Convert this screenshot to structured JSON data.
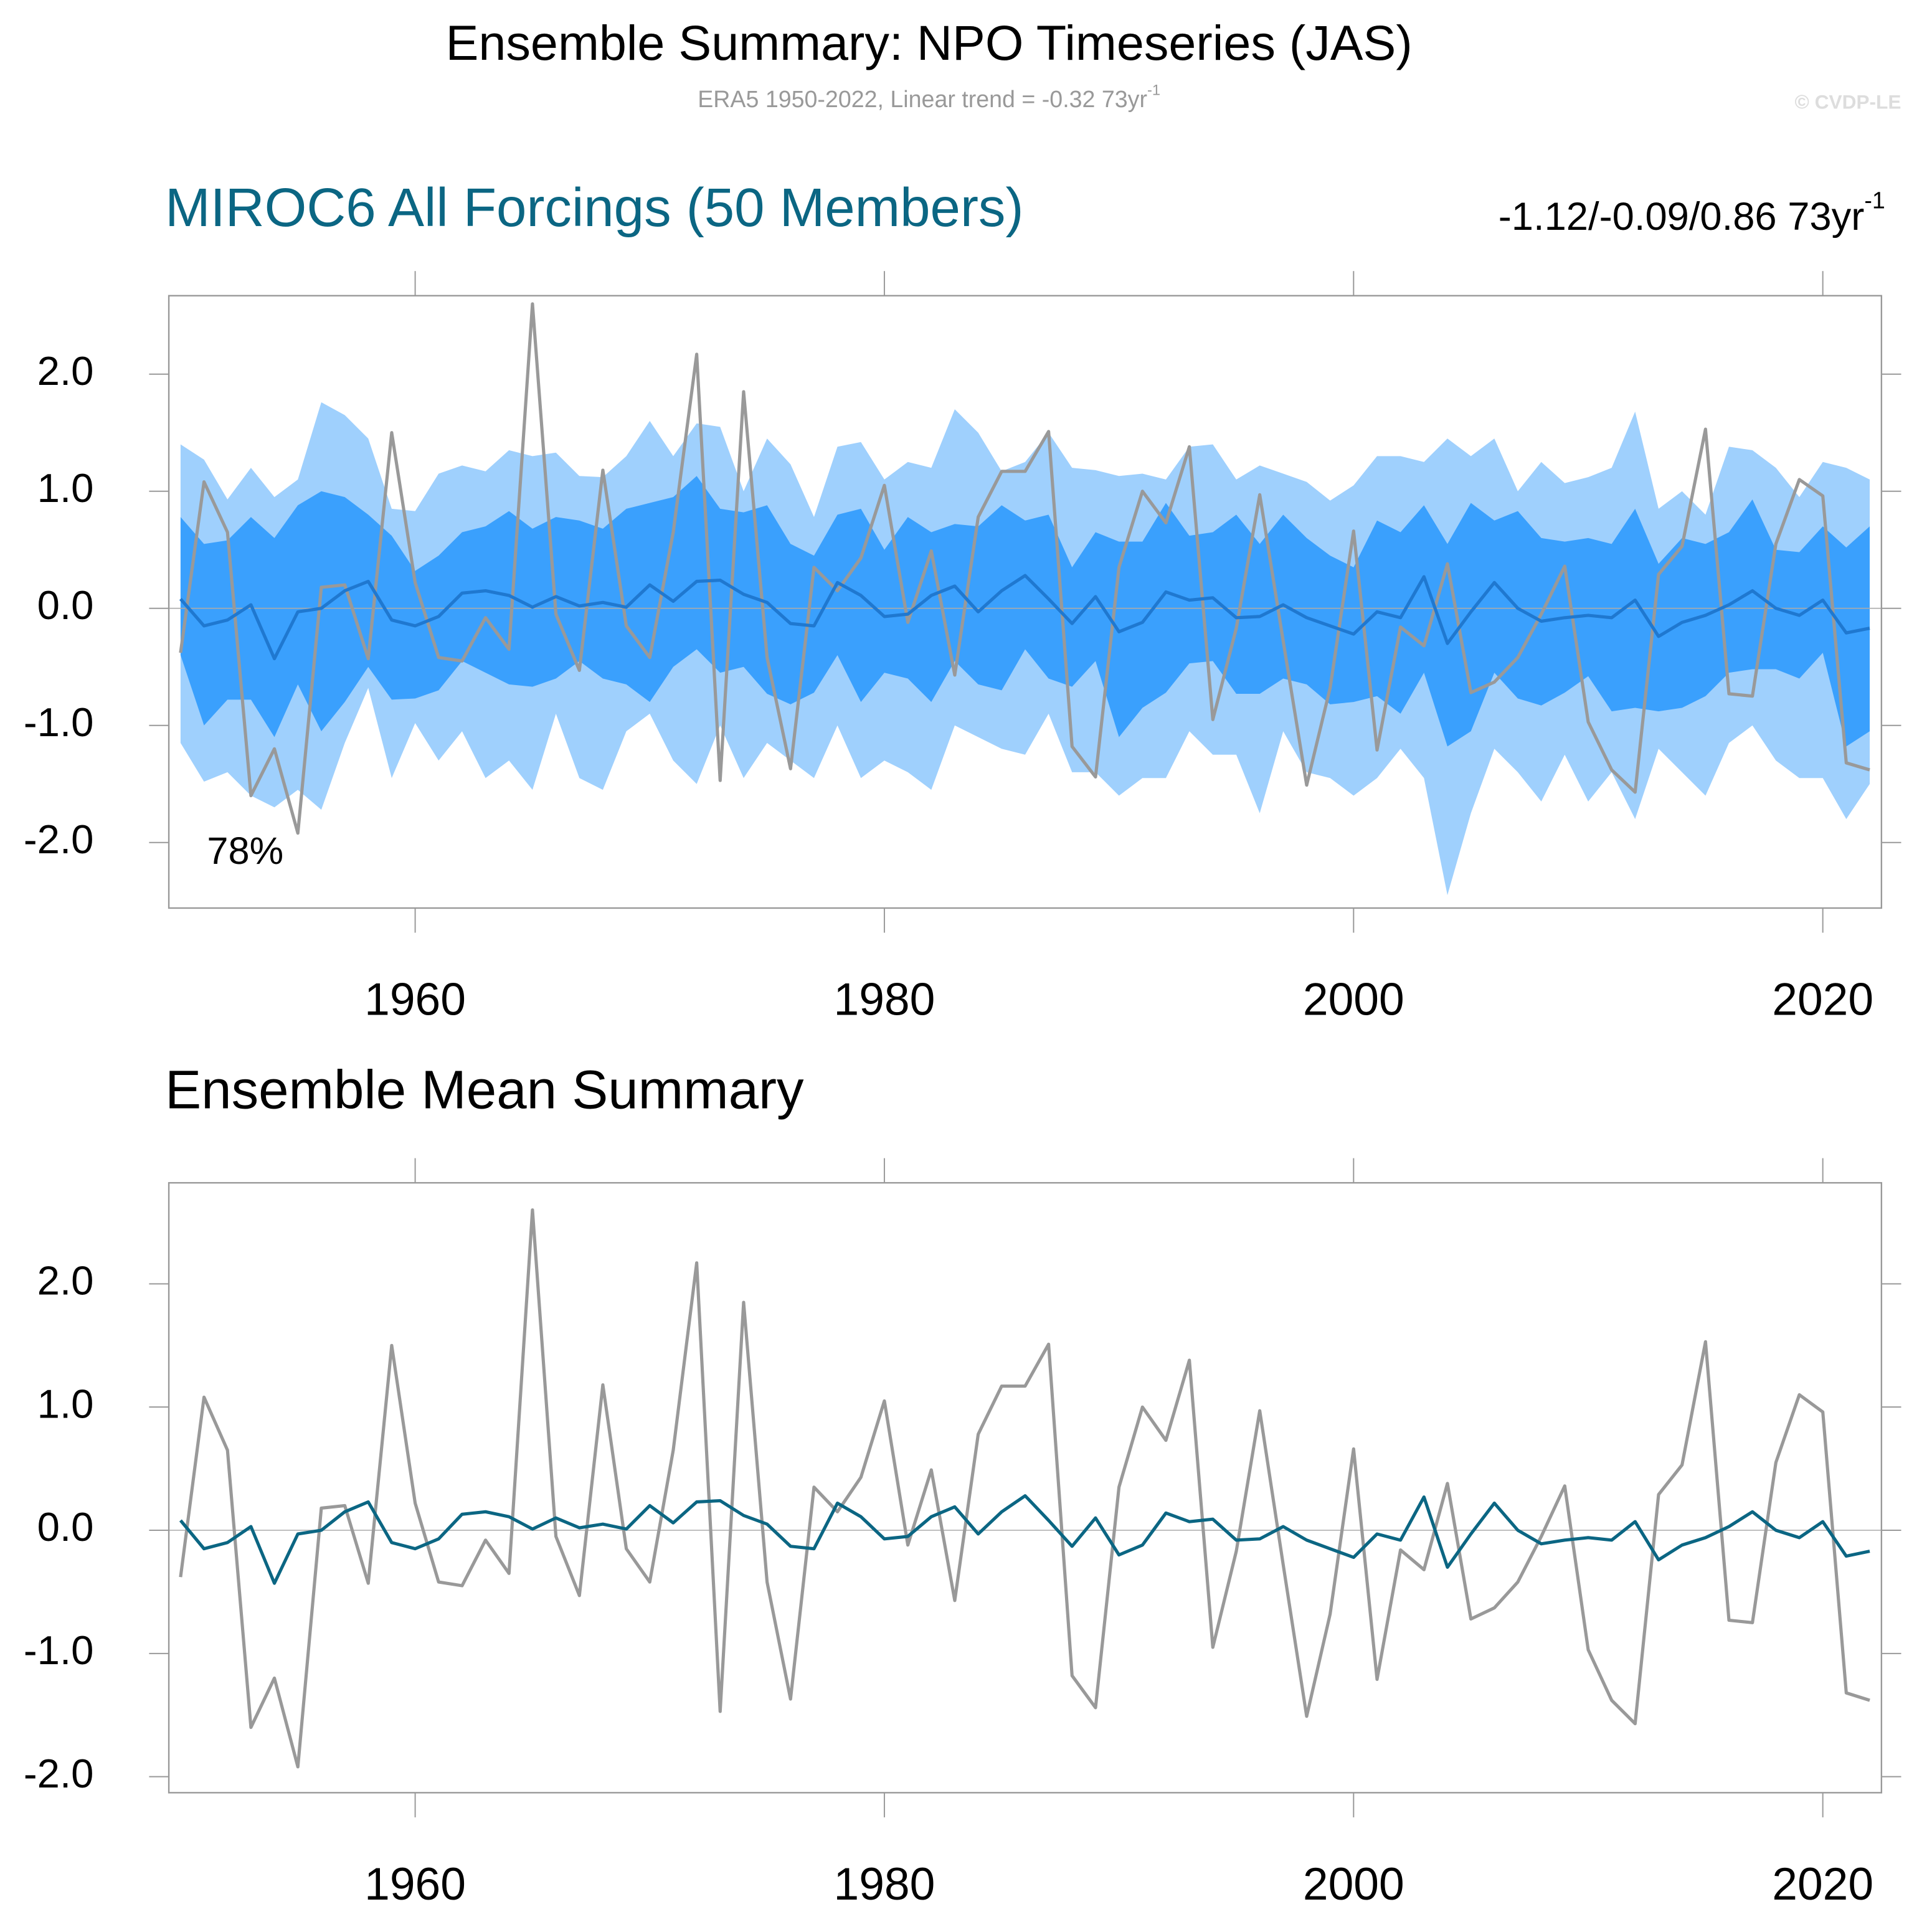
{
  "title": "Ensemble Summary: NPO Timeseries (JAS)",
  "subtitle": "ERA5 1950-2022, Linear trend = -0.32 73yr",
  "subtitle_sup": "-1",
  "copyright": "© CVDP-LE",
  "chart_data": [
    {
      "type": "line",
      "title": "MIROC6 All Forcings (50 Members)",
      "title_color": "#0b6683",
      "trend_label": "-1.12/-0.09/0.86 73yr",
      "trend_label_sup": "-1",
      "annotation": "78%",
      "x": [
        1950,
        1951,
        1952,
        1953,
        1954,
        1955,
        1956,
        1957,
        1958,
        1959,
        1960,
        1961,
        1962,
        1963,
        1964,
        1965,
        1966,
        1967,
        1968,
        1969,
        1970,
        1971,
        1972,
        1973,
        1974,
        1975,
        1976,
        1977,
        1978,
        1979,
        1980,
        1981,
        1982,
        1983,
        1984,
        1985,
        1986,
        1987,
        1988,
        1989,
        1990,
        1991,
        1992,
        1993,
        1994,
        1995,
        1996,
        1997,
        1998,
        1999,
        2000,
        2001,
        2002,
        2003,
        2004,
        2005,
        2006,
        2007,
        2008,
        2009,
        2010,
        2011,
        2012,
        2013,
        2014,
        2015,
        2016,
        2017,
        2018,
        2019,
        2020,
        2021,
        2022
      ],
      "xlim": [
        1949.5,
        2022.5
      ],
      "xticks": [
        1960,
        1980,
        2000,
        2020
      ],
      "ylim": [
        -2.56,
        2.67
      ],
      "yticks": [
        {
          "value": -2,
          "label": "-2.0"
        },
        {
          "value": -1,
          "label": "-1.0"
        },
        {
          "value": 0,
          "label": "0.0"
        },
        {
          "value": 1,
          "label": "1.0"
        },
        {
          "value": 2,
          "label": "2.0"
        }
      ],
      "zero_line": true,
      "bands": [
        {
          "color": "#9fd0fd",
          "upper": [
            1.4,
            1.27,
            0.93,
            1.2,
            0.95,
            1.1,
            1.76,
            1.65,
            1.45,
            0.85,
            0.83,
            1.15,
            1.22,
            1.17,
            1.35,
            1.3,
            1.33,
            1.13,
            1.12,
            1.3,
            1.6,
            1.3,
            1.58,
            1.55,
            1.0,
            1.45,
            1.23,
            0.78,
            1.38,
            1.42,
            1.1,
            1.25,
            1.2,
            1.7,
            1.5,
            1.17,
            1.25,
            1.5,
            1.2,
            1.18,
            1.13,
            1.15,
            1.1,
            1.38,
            1.4,
            1.1,
            1.22,
            1.15,
            1.08,
            0.92,
            1.05,
            1.3,
            1.3,
            1.25,
            1.45,
            1.3,
            1.45,
            1.0,
            1.25,
            1.07,
            1.12,
            1.2,
            1.68,
            0.85,
            1.0,
            0.8,
            1.38,
            1.35,
            1.2,
            0.95,
            1.25,
            1.2,
            1.1
          ],
          "lower": [
            -1.15,
            -1.48,
            -1.4,
            -1.6,
            -1.7,
            -1.55,
            -1.72,
            -1.15,
            -0.68,
            -1.45,
            -0.98,
            -1.3,
            -1.05,
            -1.45,
            -1.3,
            -1.55,
            -0.9,
            -1.45,
            -1.55,
            -1.05,
            -0.9,
            -1.3,
            -1.5,
            -1.0,
            -1.45,
            -1.15,
            -1.3,
            -1.45,
            -1.0,
            -1.45,
            -1.3,
            -1.4,
            -1.55,
            -1.0,
            -1.1,
            -1.2,
            -1.25,
            -0.9,
            -1.4,
            -1.4,
            -1.6,
            -1.45,
            -1.45,
            -1.05,
            -1.25,
            -1.25,
            -1.75,
            -1.05,
            -1.4,
            -1.45,
            -1.6,
            -1.45,
            -1.2,
            -1.45,
            -2.45,
            -1.75,
            -1.2,
            -1.4,
            -1.65,
            -1.25,
            -1.65,
            -1.4,
            -1.8,
            -1.2,
            -1.4,
            -1.6,
            -1.15,
            -1.0,
            -1.3,
            -1.45,
            -1.45,
            -1.8,
            -1.5
          ]
        },
        {
          "color": "#3aa0fd",
          "upper": [
            0.78,
            0.55,
            0.58,
            0.78,
            0.6,
            0.88,
            1.0,
            0.95,
            0.8,
            0.62,
            0.32,
            0.45,
            0.65,
            0.7,
            0.83,
            0.68,
            0.78,
            0.75,
            0.68,
            0.85,
            0.9,
            0.95,
            1.13,
            0.85,
            0.82,
            0.88,
            0.55,
            0.45,
            0.8,
            0.85,
            0.5,
            0.78,
            0.65,
            0.72,
            0.7,
            0.88,
            0.75,
            0.8,
            0.35,
            0.65,
            0.57,
            0.57,
            0.9,
            0.62,
            0.65,
            0.8,
            0.55,
            0.8,
            0.6,
            0.45,
            0.35,
            0.75,
            0.65,
            0.88,
            0.55,
            0.9,
            0.75,
            0.83,
            0.6,
            0.57,
            0.6,
            0.55,
            0.85,
            0.38,
            0.6,
            0.55,
            0.65,
            0.93,
            0.5,
            0.48,
            0.7,
            0.52,
            0.7
          ],
          "lower": [
            -0.4,
            -1.0,
            -0.78,
            -0.78,
            -1.1,
            -0.65,
            -1.05,
            -0.8,
            -0.5,
            -0.78,
            -0.77,
            -0.7,
            -0.45,
            -0.55,
            -0.65,
            -0.67,
            -0.6,
            -0.45,
            -0.6,
            -0.65,
            -0.8,
            -0.5,
            -0.35,
            -0.55,
            -0.5,
            -0.73,
            -0.82,
            -0.72,
            -0.4,
            -0.8,
            -0.55,
            -0.6,
            -0.8,
            -0.45,
            -0.65,
            -0.7,
            -0.35,
            -0.6,
            -0.67,
            -0.45,
            -1.1,
            -0.85,
            -0.72,
            -0.47,
            -0.45,
            -0.73,
            -0.73,
            -0.6,
            -0.65,
            -0.82,
            -0.8,
            -0.75,
            -0.9,
            -0.55,
            -1.18,
            -1.05,
            -0.55,
            -0.77,
            -0.83,
            -0.72,
            -0.58,
            -0.88,
            -0.85,
            -0.88,
            -0.85,
            -0.75,
            -0.55,
            -0.52,
            -0.52,
            -0.6,
            -0.38,
            -1.18,
            -1.05
          ]
        }
      ],
      "series": [
        {
          "color": "#999999",
          "values": [
            -0.38,
            1.08,
            0.65,
            -1.6,
            -1.2,
            -1.92,
            0.18,
            0.2,
            -0.43,
            1.5,
            0.22,
            -0.42,
            -0.45,
            -0.08,
            -0.35,
            2.6,
            -0.05,
            -0.53,
            1.18,
            -0.15,
            -0.42,
            0.65,
            2.17,
            -1.47,
            1.85,
            -0.42,
            -1.37,
            0.35,
            0.15,
            0.43,
            1.05,
            -0.12,
            0.49,
            -0.57,
            0.78,
            1.17,
            1.17,
            1.51,
            -1.18,
            -1.44,
            0.35,
            1.0,
            0.73,
            1.38,
            -0.95,
            -0.17,
            0.97,
            -0.28,
            -1.51,
            -0.68,
            0.66,
            -1.21,
            -0.16,
            -0.32,
            0.38,
            -0.72,
            -0.63,
            -0.42,
            -0.05,
            0.36,
            -0.97,
            -1.38,
            -1.57,
            0.29,
            0.53,
            1.53,
            -0.73,
            -0.75,
            0.55,
            1.1,
            0.96,
            -1.32,
            -1.38
          ]
        },
        {
          "color": "#1f78d0",
          "values": [
            0.08,
            -0.15,
            -0.1,
            0.03,
            -0.43,
            -0.03,
            0.0,
            0.15,
            0.23,
            -0.1,
            -0.15,
            -0.07,
            0.13,
            0.15,
            0.11,
            0.01,
            0.1,
            0.02,
            0.05,
            0.01,
            0.2,
            0.06,
            0.23,
            0.24,
            0.12,
            0.05,
            -0.13,
            -0.15,
            0.22,
            0.11,
            -0.07,
            -0.05,
            0.11,
            0.19,
            -0.03,
            0.15,
            0.28,
            0.08,
            -0.13,
            0.1,
            -0.2,
            -0.12,
            0.14,
            0.07,
            0.09,
            -0.08,
            -0.07,
            0.03,
            -0.08,
            -0.15,
            -0.22,
            -0.03,
            -0.08,
            0.27,
            -0.3,
            -0.03,
            0.22,
            0.0,
            -0.11,
            -0.08,
            -0.06,
            -0.08,
            0.07,
            -0.24,
            -0.12,
            -0.06,
            0.03,
            0.15,
            0.0,
            -0.06,
            0.07,
            -0.21,
            -0.17
          ]
        }
      ]
    },
    {
      "type": "line",
      "title": "Ensemble Mean Summary",
      "title_color": "#000000",
      "x": [
        1950,
        1951,
        1952,
        1953,
        1954,
        1955,
        1956,
        1957,
        1958,
        1959,
        1960,
        1961,
        1962,
        1963,
        1964,
        1965,
        1966,
        1967,
        1968,
        1969,
        1970,
        1971,
        1972,
        1973,
        1974,
        1975,
        1976,
        1977,
        1978,
        1979,
        1980,
        1981,
        1982,
        1983,
        1984,
        1985,
        1986,
        1987,
        1988,
        1989,
        1990,
        1991,
        1992,
        1993,
        1994,
        1995,
        1996,
        1997,
        1998,
        1999,
        2000,
        2001,
        2002,
        2003,
        2004,
        2005,
        2006,
        2007,
        2008,
        2009,
        2010,
        2011,
        2012,
        2013,
        2014,
        2015,
        2016,
        2017,
        2018,
        2019,
        2020,
        2021,
        2022
      ],
      "xlim": [
        1949.5,
        2022.5
      ],
      "xticks": [
        1960,
        1980,
        2000,
        2020
      ],
      "ylim": [
        -2.13,
        2.82
      ],
      "yticks": [
        {
          "value": -2,
          "label": "-2.0"
        },
        {
          "value": -1,
          "label": "-1.0"
        },
        {
          "value": 0,
          "label": "0.0"
        },
        {
          "value": 1,
          "label": "1.0"
        },
        {
          "value": 2,
          "label": "2.0"
        }
      ],
      "zero_line": true,
      "series": [
        {
          "color": "#999999",
          "values": [
            -0.38,
            1.08,
            0.65,
            -1.6,
            -1.2,
            -1.92,
            0.18,
            0.2,
            -0.43,
            1.5,
            0.22,
            -0.42,
            -0.45,
            -0.08,
            -0.35,
            2.6,
            -0.05,
            -0.53,
            1.18,
            -0.15,
            -0.42,
            0.65,
            2.17,
            -1.47,
            1.85,
            -0.42,
            -1.37,
            0.35,
            0.15,
            0.43,
            1.05,
            -0.12,
            0.49,
            -0.57,
            0.78,
            1.17,
            1.17,
            1.51,
            -1.18,
            -1.44,
            0.35,
            1.0,
            0.73,
            1.38,
            -0.95,
            -0.17,
            0.97,
            -0.28,
            -1.51,
            -0.68,
            0.66,
            -1.21,
            -0.16,
            -0.32,
            0.38,
            -0.72,
            -0.63,
            -0.42,
            -0.05,
            0.36,
            -0.97,
            -1.38,
            -1.57,
            0.29,
            0.53,
            1.53,
            -0.73,
            -0.75,
            0.55,
            1.1,
            0.96,
            -1.32,
            -1.38
          ]
        },
        {
          "color": "#0b6683",
          "values": [
            0.08,
            -0.15,
            -0.1,
            0.03,
            -0.43,
            -0.03,
            0.0,
            0.15,
            0.23,
            -0.1,
            -0.15,
            -0.07,
            0.13,
            0.15,
            0.11,
            0.01,
            0.1,
            0.02,
            0.05,
            0.01,
            0.2,
            0.06,
            0.23,
            0.24,
            0.12,
            0.05,
            -0.13,
            -0.15,
            0.22,
            0.11,
            -0.07,
            -0.05,
            0.11,
            0.19,
            -0.03,
            0.15,
            0.28,
            0.08,
            -0.13,
            0.1,
            -0.2,
            -0.12,
            0.14,
            0.07,
            0.09,
            -0.08,
            -0.07,
            0.03,
            -0.08,
            -0.15,
            -0.22,
            -0.03,
            -0.08,
            0.27,
            -0.3,
            -0.03,
            0.22,
            0.0,
            -0.11,
            -0.08,
            -0.06,
            -0.08,
            0.07,
            -0.24,
            -0.12,
            -0.06,
            0.03,
            0.15,
            0.0,
            -0.06,
            0.07,
            -0.21,
            -0.17
          ]
        }
      ]
    }
  ]
}
